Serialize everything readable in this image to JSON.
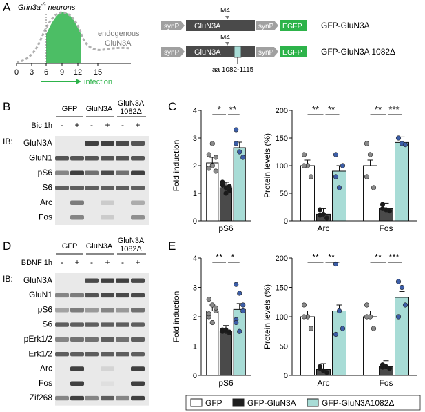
{
  "panel_letters": [
    "A",
    "B",
    "C",
    "D",
    "E"
  ],
  "panelA": {
    "neurons_label": "Grin3a",
    "neurons_sup": "-/-",
    "neurons_suffix": " neurons",
    "endogenous_label": "endogenous",
    "glun3a_label": "GluN3A",
    "x_ticks": [
      "0",
      "3",
      "6",
      "9",
      "12",
      "15"
    ],
    "infection_label": "infection",
    "constructs": [
      {
        "synP1": "synP",
        "gene": "GluN3A",
        "m4": "M4",
        "synP2": "synP",
        "reporter": "EGFP",
        "name": "GFP-GluN3A"
      },
      {
        "synP1": "synP",
        "gene": "GluN3A",
        "m4": "M4",
        "synP2": "synP",
        "reporter": "EGFP",
        "name": "GFP-GluN3A 1082Δ",
        "deletion": "aa 1082-1115"
      }
    ]
  },
  "panelB": {
    "group_labels": [
      "GFP",
      "GluN3A",
      "GluN3A",
      "1082Δ"
    ],
    "treatment": "Bic 1h",
    "signs": [
      "-",
      "+",
      "-",
      "+",
      "-",
      "+"
    ],
    "ib": "IB:",
    "rows": [
      "GluN3A",
      "GluN1",
      "pS6",
      "S6",
      "Arc",
      "Fos"
    ]
  },
  "panelD": {
    "group_labels": [
      "GFP",
      "GluN3A",
      "GluN3A",
      "1082Δ"
    ],
    "treatment": "BDNF 1h",
    "signs": [
      "-",
      "+",
      "-",
      "+",
      "-",
      "+"
    ],
    "ib": "IB:",
    "rows": [
      "GluN3A",
      "GluN1",
      "pS6",
      "S6",
      "pErk1/2",
      "Erk1/2",
      "Arc",
      "Fos",
      "Zif268"
    ]
  },
  "colors": {
    "gfp": "#ffffff",
    "glun3a": "#4a4a4a",
    "del": "#a8dcd6",
    "green": "#2db34a",
    "dot_blue": "#3c5ea8",
    "dot_gray": "#8a8a8a",
    "dot_black": "#1a1a1a"
  },
  "chart_data": [
    {
      "type": "bar",
      "panel": "C-left",
      "ylabel": "Fold induction",
      "categories": [
        "pS6"
      ],
      "ylim": [
        0,
        4
      ],
      "yticks": [
        "0",
        "1",
        "2",
        "3",
        "4"
      ],
      "series": [
        {
          "name": "GFP",
          "values": [
            2.1
          ]
        },
        {
          "name": "GFP-GluN3A",
          "values": [
            1.2
          ]
        },
        {
          "name": "GFP-GluN3A1082Δ",
          "values": [
            2.65
          ]
        }
      ],
      "significance": [
        "*",
        "**"
      ]
    },
    {
      "type": "bar",
      "panel": "C-right",
      "ylabel": "Protein levels (%)",
      "categories": [
        "Arc",
        "Fos"
      ],
      "ylim": [
        0,
        200
      ],
      "yticks": [
        "0",
        "50",
        "100",
        "150",
        "200"
      ],
      "series": [
        {
          "name": "GFP",
          "values": [
            100,
            100
          ]
        },
        {
          "name": "GFP-GluN3A",
          "values": [
            12,
            22
          ]
        },
        {
          "name": "GFP-GluN3A1082Δ",
          "values": [
            90,
            142
          ]
        }
      ],
      "significance": [
        "**",
        "**",
        "**",
        "***"
      ]
    },
    {
      "type": "bar",
      "panel": "E-left",
      "ylabel": "Fold induction",
      "categories": [
        "pS6"
      ],
      "ylim": [
        0,
        4
      ],
      "yticks": [
        "0",
        "1",
        "2",
        "3",
        "4"
      ],
      "series": [
        {
          "name": "GFP",
          "values": [
            2.2
          ]
        },
        {
          "name": "GFP-GluN3A",
          "values": [
            1.5
          ]
        },
        {
          "name": "GFP-GluN3A1082Δ",
          "values": [
            2.25
          ]
        }
      ],
      "significance": [
        "**",
        "*"
      ]
    },
    {
      "type": "bar",
      "panel": "E-right",
      "ylabel": "Protein levels (%)",
      "categories": [
        "Arc",
        "Fos"
      ],
      "ylim": [
        0,
        200
      ],
      "yticks": [
        "0",
        "50",
        "100",
        "150",
        "200"
      ],
      "series": [
        {
          "name": "GFP",
          "values": [
            100,
            100
          ]
        },
        {
          "name": "GFP-GluN3A",
          "values": [
            10,
            15
          ]
        },
        {
          "name": "GFP-GluN3A1082Δ",
          "values": [
            110,
            133
          ]
        }
      ],
      "significance": [
        "**",
        "**",
        "**",
        "***"
      ]
    }
  ],
  "legend": [
    "GFP",
    "GFP-GluN3A",
    "GFP-GluN3A1082Δ"
  ]
}
